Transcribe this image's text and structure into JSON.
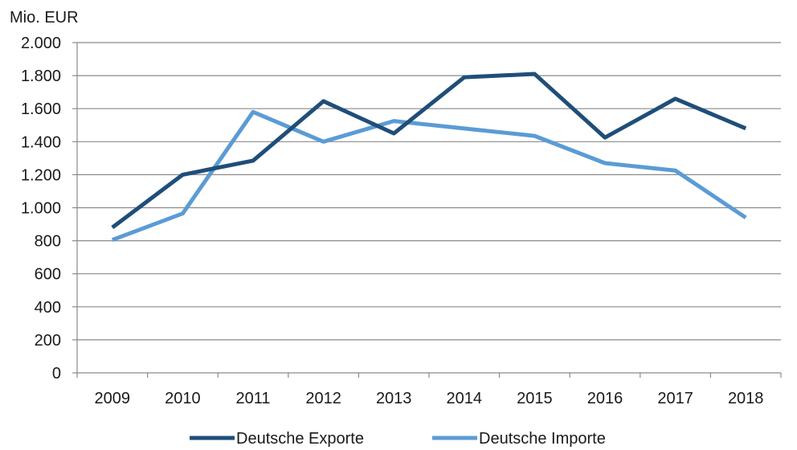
{
  "chart_data": {
    "type": "line",
    "ylabel": "Mio. EUR",
    "xlabel": "",
    "categories": [
      "2009",
      "2010",
      "2011",
      "2012",
      "2013",
      "2014",
      "2015",
      "2016",
      "2017",
      "2018"
    ],
    "ylim": [
      0,
      2000
    ],
    "yticks": [
      0,
      200,
      400,
      600,
      800,
      1000,
      1200,
      1400,
      1600,
      1800,
      2000
    ],
    "ytick_labels": [
      "0",
      "200",
      "400",
      "600",
      "800",
      "1.000",
      "1.200",
      "1.400",
      "1.600",
      "1.800",
      "2.000"
    ],
    "grid": "horizontal",
    "legend_position": "bottom",
    "series": [
      {
        "name": "Deutsche Exporte",
        "color": "#1f4e79",
        "values": [
          880,
          1200,
          1285,
          1645,
          1450,
          1790,
          1810,
          1425,
          1660,
          1480
        ]
      },
      {
        "name": "Deutsche Importe",
        "color": "#5b9bd5",
        "values": [
          805,
          965,
          1580,
          1400,
          1525,
          1480,
          1435,
          1270,
          1225,
          940
        ]
      }
    ]
  }
}
